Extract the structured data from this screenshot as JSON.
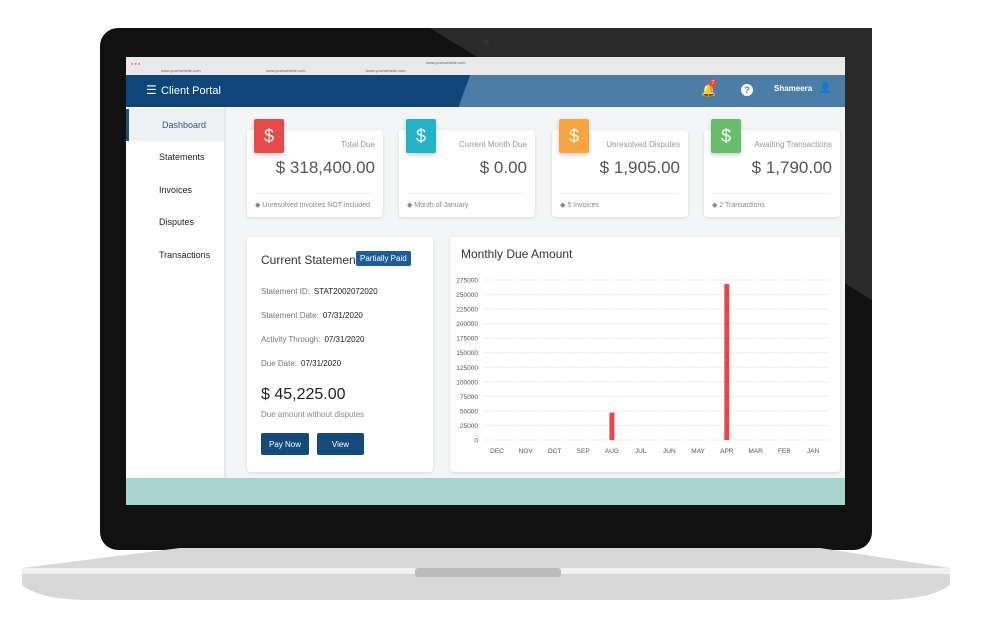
{
  "browser": {
    "tabs": [
      "www.yourwebsite.com",
      "www.yourwebsite.com",
      "www.yourwebsite.com"
    ],
    "url": "www.yourwebsite.com"
  },
  "header": {
    "title": "Client Portal",
    "notifications": "7",
    "help": "?",
    "user": "Shameera"
  },
  "sidebar": {
    "items": [
      "Dashboard",
      "Statements",
      "Invoices",
      "Disputes",
      "Transactions"
    ]
  },
  "cards": [
    {
      "icon": "$",
      "title": "Total Due",
      "value": "$ 318,400.00",
      "note": "Unresolved Invoices NOT included",
      "color": "#e84a4a"
    },
    {
      "icon": "$",
      "title": "Current Month Due",
      "value": "$ 0.00",
      "note": "Month of January",
      "color": "#22b3c6"
    },
    {
      "icon": "$",
      "title": "Unresolved Disputes",
      "value": "$ 1,905.00",
      "note": "5 Invoices",
      "color": "#f6a53f"
    },
    {
      "icon": "$",
      "title": "Awaiting Transactions",
      "value": "$ 1,790.00",
      "note": "2 Transactions",
      "color": "#6abc6d"
    }
  ],
  "statement": {
    "title": "Current Statement",
    "status": "Partially Paid",
    "fields": [
      {
        "label": "Statement ID:",
        "value": "STAT2002072020"
      },
      {
        "label": "Statement Date:",
        "value": "07/31/2020"
      },
      {
        "label": "Activity Through:",
        "value": "07/31/2020"
      },
      {
        "label": "Due Date:",
        "value": "07/31/2020"
      }
    ],
    "amount": "$ 45,225.00",
    "amount_note": "Due amount without disputes",
    "buttons": [
      "Pay Now",
      "View"
    ]
  },
  "chart_data": {
    "type": "bar",
    "title": "Monthly Due Amount",
    "categories": [
      "DEC",
      "NOV",
      "OCT",
      "SEP",
      "AUG",
      "JUL",
      "JUN",
      "MAY",
      "APR",
      "MAR",
      "FEB",
      "JAN"
    ],
    "values": [
      0,
      0,
      0,
      0,
      47000,
      0,
      0,
      0,
      268000,
      0,
      0,
      0
    ],
    "color": "#e8464b",
    "ylim": [
      0,
      275000
    ],
    "yticks": [
      0,
      25000,
      50000,
      75000,
      100000,
      125000,
      150000,
      175000,
      200000,
      225000,
      250000,
      275000
    ],
    "grid": true
  }
}
